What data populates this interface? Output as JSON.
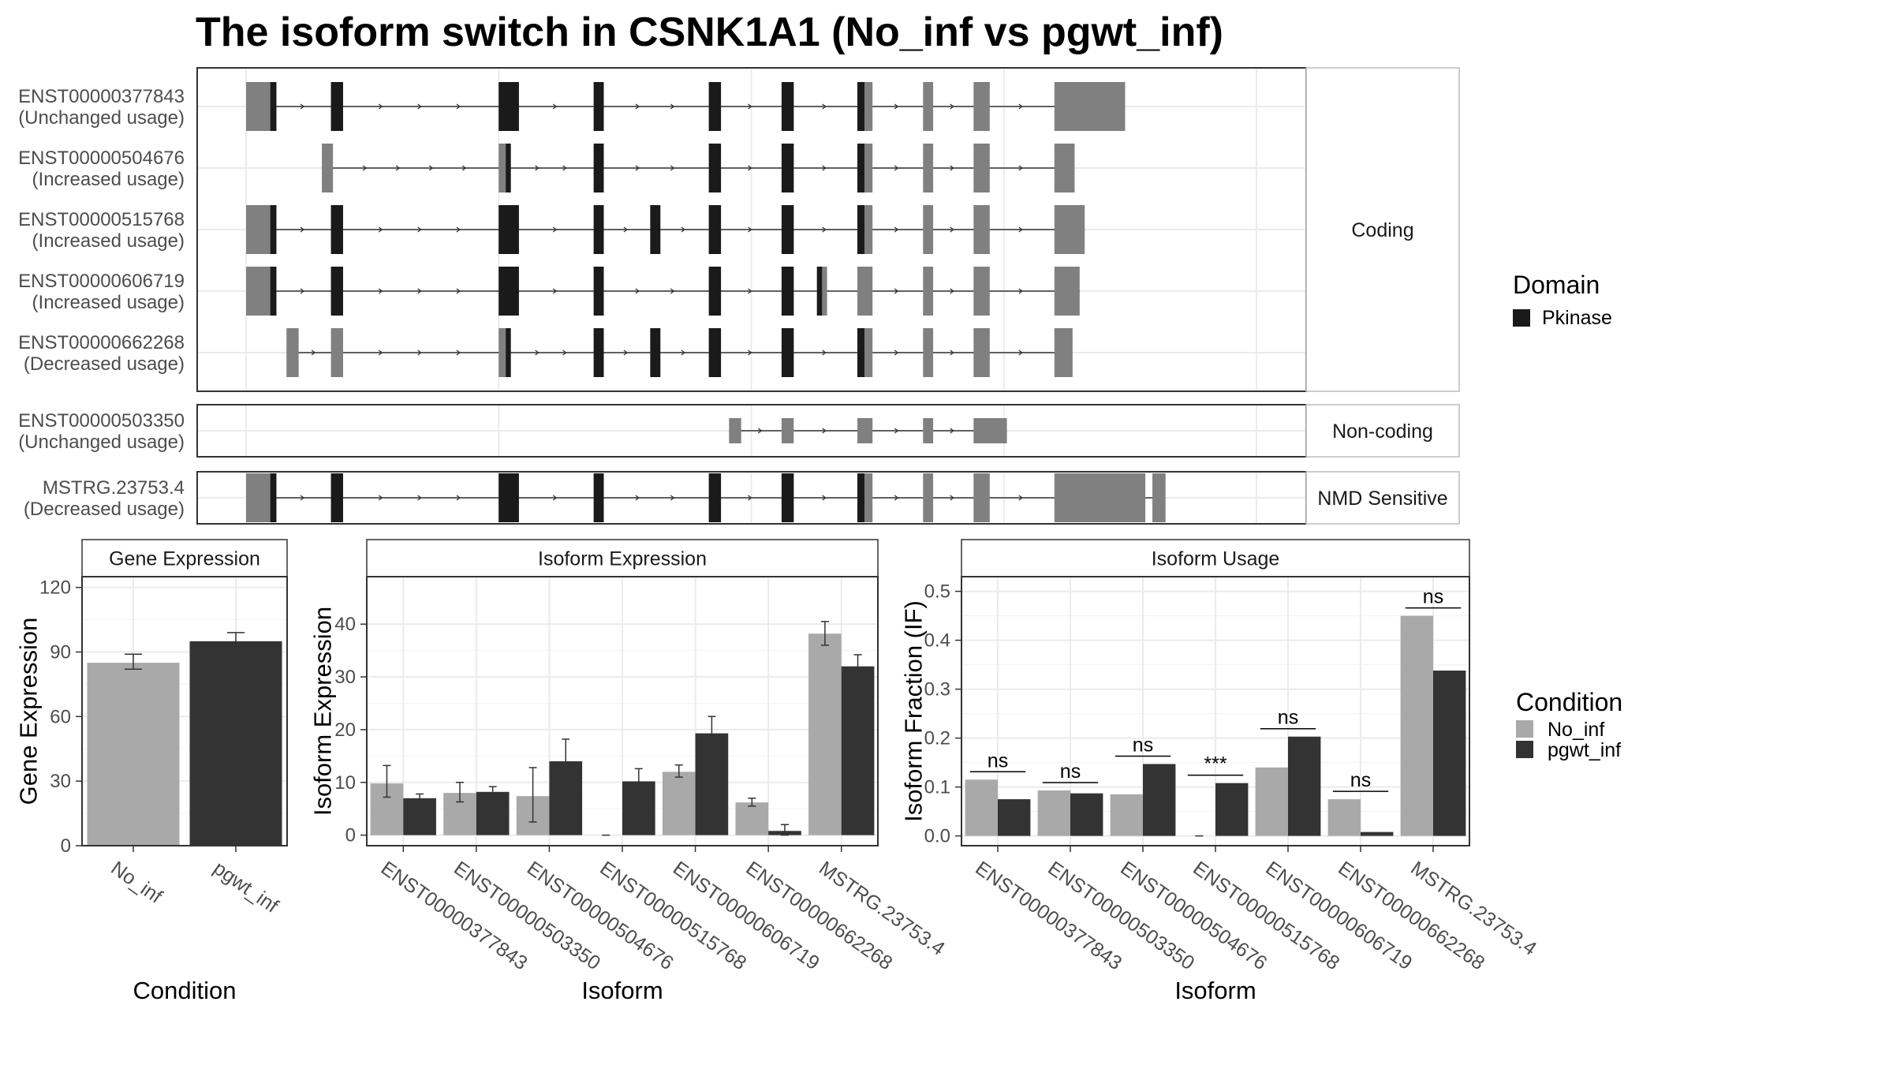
{
  "title": "The isoform switch in CSNK1A1 (No_inf vs pgwt_inf)",
  "colors": {
    "no_inf": "#a9a9a9",
    "pgwt_inf": "#333333",
    "domain": "#1a1a1a",
    "exon": "#808080",
    "panel_border": "#333333",
    "strip_fill": "#ffffff",
    "grid": "#ebebeb"
  },
  "structure": {
    "coordinate_range": [
      0,
      1000
    ],
    "legend": {
      "title": "Domain",
      "entries": [
        {
          "name": "Pkinase"
        }
      ]
    },
    "groups": [
      {
        "label": "Coding",
        "transcripts": [
          {
            "id": "ENST00000377843",
            "usage": "(Unchanged usage)",
            "line": [
              0,
              870
            ],
            "exons": [
              [
                0,
                30
              ],
              [
                84,
                96
              ],
              [
                250,
                270
              ],
              [
                344,
                354
              ],
              [
                458,
                470
              ],
              [
                530,
                542
              ],
              [
                605,
                620
              ],
              [
                670,
                680
              ],
              [
                720,
                736
              ],
              [
                800,
                870
              ]
            ],
            "thin_exons": [
              [
                0,
                24
              ]
            ],
            "thick_exons": [
              [
                800,
                870
              ]
            ],
            "domains": [
              [
                24,
                30
              ],
              [
                84,
                96
              ],
              [
                250,
                270
              ],
              [
                344,
                354
              ],
              [
                458,
                470
              ],
              [
                530,
                542
              ],
              [
                605,
                612
              ]
            ]
          },
          {
            "id": "ENST00000504676",
            "usage": "(Increased usage)",
            "line": [
              75,
              820
            ],
            "exons": [
              [
                75,
                86
              ],
              [
                250,
                262
              ],
              [
                344,
                354
              ],
              [
                458,
                470
              ],
              [
                530,
                542
              ],
              [
                605,
                620
              ],
              [
                670,
                680
              ],
              [
                720,
                736
              ],
              [
                800,
                820
              ]
            ],
            "thin_exons": [
              [
                250,
                257
              ]
            ],
            "thick_exons": [
              [
                800,
                820
              ]
            ],
            "domains": [
              [
                257,
                262
              ],
              [
                344,
                354
              ],
              [
                458,
                470
              ],
              [
                530,
                542
              ],
              [
                605,
                612
              ]
            ]
          },
          {
            "id": "ENST00000515768",
            "usage": "(Increased usage)",
            "line": [
              0,
              830
            ],
            "exons": [
              [
                0,
                30
              ],
              [
                84,
                96
              ],
              [
                250,
                270
              ],
              [
                344,
                354
              ],
              [
                400,
                410
              ],
              [
                458,
                470
              ],
              [
                530,
                542
              ],
              [
                605,
                620
              ],
              [
                670,
                680
              ],
              [
                720,
                736
              ],
              [
                800,
                830
              ]
            ],
            "thin_exons": [
              [
                0,
                24
              ]
            ],
            "thick_exons": [
              [
                800,
                830
              ]
            ],
            "domains": [
              [
                24,
                30
              ],
              [
                84,
                96
              ],
              [
                250,
                270
              ],
              [
                344,
                354
              ],
              [
                400,
                410
              ],
              [
                458,
                470
              ],
              [
                530,
                542
              ],
              [
                605,
                612
              ]
            ]
          },
          {
            "id": "ENST00000606719",
            "usage": "(Increased usage)",
            "line": [
              0,
              825
            ],
            "exons": [
              [
                0,
                30
              ],
              [
                84,
                96
              ],
              [
                250,
                270
              ],
              [
                344,
                354
              ],
              [
                458,
                470
              ],
              [
                530,
                542
              ],
              [
                565,
                575
              ],
              [
                605,
                620
              ],
              [
                670,
                680
              ],
              [
                720,
                736
              ],
              [
                800,
                825
              ]
            ],
            "thin_exons": [
              [
                0,
                24
              ]
            ],
            "thick_exons": [
              [
                800,
                825
              ]
            ],
            "domains": [
              [
                24,
                30
              ],
              [
                84,
                96
              ],
              [
                250,
                270
              ],
              [
                344,
                354
              ],
              [
                458,
                470
              ],
              [
                530,
                542
              ],
              [
                565,
                570
              ]
            ]
          },
          {
            "id": "ENST00000662268",
            "usage": "(Decreased usage)",
            "line": [
              40,
              818
            ],
            "exons": [
              [
                40,
                52
              ],
              [
                84,
                96
              ],
              [
                250,
                262
              ],
              [
                344,
                354
              ],
              [
                400,
                410
              ],
              [
                458,
                470
              ],
              [
                530,
                542
              ],
              [
                605,
                620
              ],
              [
                670,
                680
              ],
              [
                720,
                736
              ],
              [
                800,
                818
              ]
            ],
            "thin_exons": [
              [
                250,
                257
              ]
            ],
            "thick_exons": [
              [
                800,
                818
              ]
            ],
            "domains": [
              [
                257,
                262
              ],
              [
                344,
                354
              ],
              [
                400,
                410
              ],
              [
                458,
                470
              ],
              [
                530,
                542
              ],
              [
                605,
                612
              ]
            ]
          }
        ]
      },
      {
        "label": "Non-coding",
        "transcripts": [
          {
            "id": "ENST00000503350",
            "usage": "(Unchanged usage)",
            "line": [
              478,
              753
            ],
            "exons": [
              [
                478,
                490
              ],
              [
                530,
                542
              ],
              [
                605,
                620
              ],
              [
                670,
                680
              ],
              [
                720,
                753
              ]
            ],
            "thin_exons": [
              [
                478,
                490
              ],
              [
                530,
                542
              ],
              [
                605,
                620
              ],
              [
                670,
                680
              ],
              [
                720,
                753
              ]
            ],
            "thick_exons": [],
            "domains": []
          }
        ]
      },
      {
        "label": "NMD Sensitive",
        "transcripts": [
          {
            "id": "MSTRG.23753.4",
            "usage": "(Decreased usage)",
            "line": [
              0,
              910
            ],
            "exons": [
              [
                0,
                30
              ],
              [
                84,
                96
              ],
              [
                250,
                270
              ],
              [
                344,
                354
              ],
              [
                458,
                470
              ],
              [
                530,
                542
              ],
              [
                605,
                620
              ],
              [
                670,
                680
              ],
              [
                720,
                736
              ],
              [
                800,
                890
              ],
              [
                897,
                910
              ]
            ],
            "thin_exons": [
              [
                0,
                24
              ]
            ],
            "thick_exons": [
              [
                800,
                890
              ],
              [
                897,
                910
              ]
            ],
            "domains": [
              [
                24,
                30
              ],
              [
                84,
                96
              ],
              [
                250,
                270
              ],
              [
                344,
                354
              ],
              [
                458,
                470
              ],
              [
                530,
                542
              ],
              [
                605,
                612
              ]
            ]
          }
        ]
      }
    ]
  },
  "chart_data": [
    {
      "type": "bar",
      "title": "Gene Expression",
      "xlabel": "Condition",
      "ylabel": "Gene Expression",
      "categories": [
        "No_inf",
        "pgwt_inf"
      ],
      "values": [
        85,
        95
      ],
      "errors": [
        [
          82,
          89
        ],
        [
          91,
          99
        ]
      ],
      "ylim": [
        0,
        125
      ],
      "yticks": [
        0,
        30,
        60,
        90,
        120
      ]
    },
    {
      "type": "bar",
      "title": "Isoform Expression",
      "xlabel": "Isoform",
      "ylabel": "Isoform Expression",
      "categories": [
        "ENST00000377843",
        "ENST00000503350",
        "ENST00000504676",
        "ENST00000515768",
        "ENST00000606719",
        "ENST00000662268",
        "MSTRG.23753.4"
      ],
      "series": [
        {
          "name": "No_inf",
          "values": [
            9.8,
            8.0,
            7.4,
            0,
            12.0,
            6.2,
            38.2
          ],
          "errors": [
            [
              7.2,
              13.2
            ],
            [
              6.3,
              10.0
            ],
            [
              2.5,
              12.8
            ],
            null,
            [
              11.0,
              13.3
            ],
            [
              5.5,
              7.0
            ],
            [
              36.0,
              40.5
            ]
          ]
        },
        {
          "name": "pgwt_inf",
          "values": [
            7.0,
            8.2,
            14.0,
            10.2,
            19.3,
            0.8,
            32.0
          ],
          "errors": [
            [
              6.5,
              7.8
            ],
            [
              7.2,
              9.2
            ],
            [
              10.0,
              18.2
            ],
            [
              8.0,
              12.6
            ],
            [
              16.0,
              22.5
            ],
            [
              0.0,
              2.0
            ],
            [
              30.0,
              34.2
            ]
          ]
        }
      ],
      "ylim": [
        -2,
        49
      ],
      "yticks": [
        0,
        10,
        20,
        30,
        40
      ]
    },
    {
      "type": "bar",
      "title": "Isoform Usage",
      "xlabel": "Isoform",
      "ylabel": "Isoform Fraction (IF)",
      "categories": [
        "ENST00000377843",
        "ENST00000503350",
        "ENST00000504676",
        "ENST00000515768",
        "ENST00000606719",
        "ENST00000662268",
        "MSTRG.23753.4"
      ],
      "series": [
        {
          "name": "No_inf",
          "values": [
            0.115,
            0.093,
            0.085,
            0.0,
            0.14,
            0.075,
            0.45
          ]
        },
        {
          "name": "pgwt_inf",
          "values": [
            0.075,
            0.087,
            0.147,
            0.108,
            0.203,
            0.008,
            0.338
          ]
        }
      ],
      "significance": [
        "ns",
        "ns",
        "ns",
        "***",
        "ns",
        "ns",
        "ns"
      ],
      "ylim": [
        -0.02,
        0.53
      ],
      "yticks": [
        0.0,
        0.1,
        0.2,
        0.3,
        0.4,
        0.5
      ],
      "ytick_labels": [
        "0.0",
        "0.1",
        "0.2",
        "0.3",
        "0.4",
        "0.5"
      ]
    }
  ],
  "condition_legend": {
    "title": "Condition",
    "entries": [
      {
        "name": "No_inf"
      },
      {
        "name": "pgwt_inf"
      }
    ]
  }
}
